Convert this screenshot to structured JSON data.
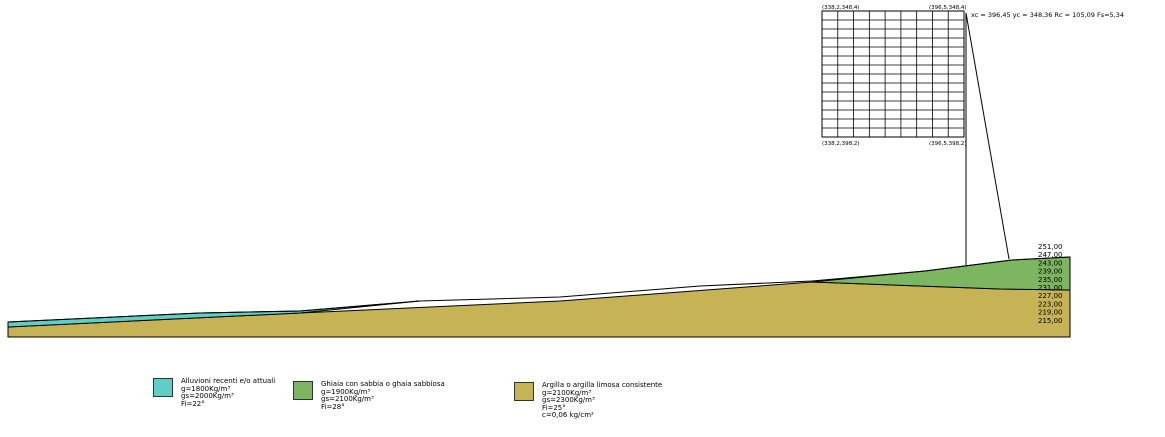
{
  "result_text": "xc = 396,45 yc = 348,36 Rc = 105,09 Fs=5,34",
  "grid": {
    "corner_top_left": "(338,2,348,4)",
    "corner_top_right": "(396,5,348,4)",
    "corner_bottom_left": "(338,2,398,2)",
    "corner_bottom_right": "(396,5,398,2)",
    "columns": 9,
    "rows": 14
  },
  "elevation_scale": [
    "251,00",
    "247,00",
    "243,00",
    "239,00",
    "235,00",
    "231,00",
    "227,00",
    "223,00",
    "219,00",
    "215,00"
  ],
  "colors": {
    "alluvium": "#5ecfc7",
    "gravel": "#7cb660",
    "clay": "#c6b355",
    "line": "#000000"
  },
  "legend": [
    {
      "title": "Alluvioni recenti e/o attuali",
      "lines": [
        "g=1800Kg/m³",
        "gs=2000Kg/m³",
        "Fi=22°"
      ],
      "color": "#5ecfc7"
    },
    {
      "title": "Ghiaia con sabbia o ghaia sabbiosa",
      "lines": [
        "g=1900Kg/m³",
        "gs=2100Kg/m³",
        "Fi=28°"
      ],
      "color": "#7cb660"
    },
    {
      "title": "Argilla o argilla limosa consistente",
      "lines": [
        "g=2100Kg/m³",
        "gs=2300Kg/m³",
        "Fi=25°",
        "c=0,06 kg/cm²"
      ],
      "color": "#c6b355"
    }
  ]
}
